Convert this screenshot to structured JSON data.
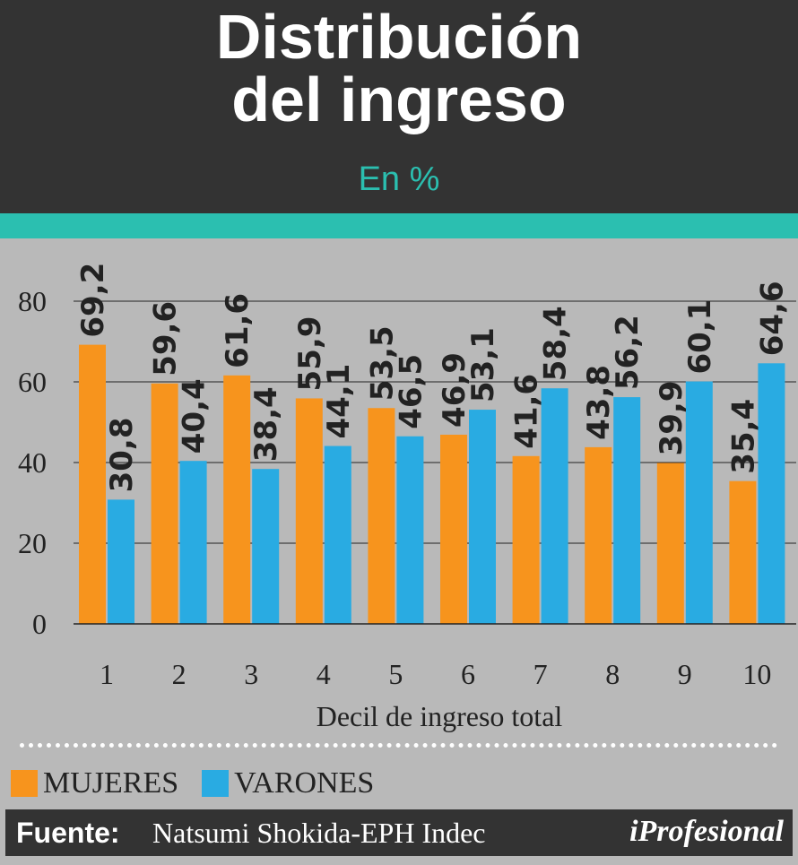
{
  "header": {
    "title_line1": "Distribución",
    "title_line2": "del ingreso",
    "subtitle": "En %"
  },
  "colors": {
    "header_bg": "#333333",
    "accent_teal": "#2bbfb0",
    "panel_bg": "#b9b9b9",
    "mujeres": "#f7941d",
    "varones": "#29abe2"
  },
  "chart_data": {
    "type": "bar",
    "title": "Distribución del ingreso",
    "subtitle": "En %",
    "xlabel": "Decil de ingreso total",
    "ylabel": "",
    "categories": [
      "1",
      "2",
      "3",
      "4",
      "5",
      "6",
      "7",
      "8",
      "9",
      "10"
    ],
    "series": [
      {
        "name": "MUJERES",
        "values": [
          69.2,
          59.6,
          61.6,
          55.9,
          53.5,
          46.9,
          41.6,
          43.8,
          39.9,
          35.4
        ],
        "labels": [
          "69,2",
          "59,6",
          "61,6",
          "55,9",
          "53,5",
          "46,9",
          "41,6",
          "43,8",
          "39,9",
          "35,4"
        ]
      },
      {
        "name": "VARONES",
        "values": [
          30.8,
          40.4,
          38.4,
          44.1,
          46.5,
          53.1,
          58.4,
          56.2,
          60.1,
          64.6
        ],
        "labels": [
          "30,8",
          "40,4",
          "38,4",
          "44,1",
          "46,5",
          "53,1",
          "58,4",
          "56,2",
          "60,1",
          "64,6"
        ]
      }
    ],
    "yticks": [
      "0",
      "20",
      "40",
      "60",
      "80"
    ],
    "ylim": [
      0,
      80
    ],
    "grid": true,
    "legend": "bottom-left"
  },
  "legend": {
    "mujeres_label": "MUJERES",
    "varones_label": "VARONES"
  },
  "footer": {
    "source_label": "Fuente:",
    "source_text": "Natsumi Shokida-EPH Indec",
    "logo": "iProfesional"
  }
}
